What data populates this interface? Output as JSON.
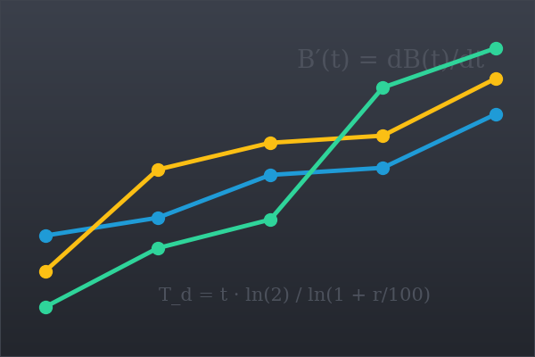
{
  "chart_data": {
    "type": "line",
    "annotations": [
      "B′(t) = dB(t)/dt",
      "T_d = t · ln(2) / ln(1 + r/100)"
    ],
    "x": [
      0,
      1,
      2,
      3,
      4
    ],
    "xlim": [
      -0.4,
      4.35
    ],
    "xticks": [],
    "ylim": [
      0,
      100
    ],
    "yticks": [],
    "tick_labels": false,
    "grid": false,
    "marker": "o",
    "line_style": "solid",
    "series": [
      {
        "color": "#1f9bd7",
        "values": [
          34,
          39,
          51,
          53,
          68
        ]
      },
      {
        "color": "#fbbf14",
        "values": [
          24,
          52.5,
          60,
          62,
          78
        ]
      },
      {
        "color": "#2fd49a",
        "values": [
          14,
          30.5,
          38.5,
          75.5,
          86.5
        ]
      }
    ]
  }
}
